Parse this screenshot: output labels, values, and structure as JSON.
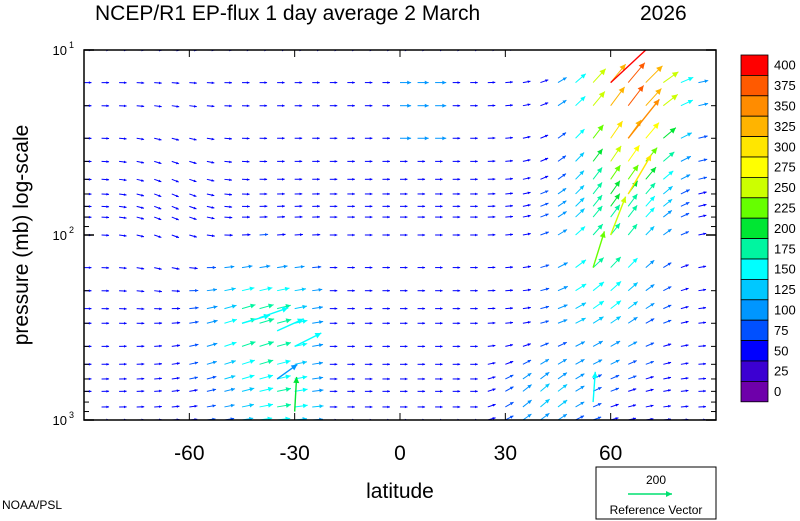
{
  "chart_data": {
    "type": "quiver",
    "title": "NCEP/R1 EP-flux  1 day average  2 March",
    "year": "2026",
    "xlabel": "latitude",
    "ylabel": "pressure (mb)  log-scale",
    "x_ticks": [
      -60,
      -30,
      0,
      30,
      60
    ],
    "x_tick_labels": [
      "-60",
      "-30",
      "0",
      "30",
      "60"
    ],
    "xlim": [
      -90,
      90
    ],
    "ylim": [
      1000,
      10
    ],
    "y_scale": "log",
    "y_tick_labels": [
      {
        "value": 10,
        "base": "10",
        "exp": "1"
      },
      {
        "value": 100,
        "base": "10",
        "exp": "2"
      },
      {
        "value": 1000,
        "base": "10",
        "exp": "3"
      }
    ],
    "colorbar": {
      "levels": [
        "400",
        "375",
        "350",
        "325",
        "300",
        "275",
        "250",
        "225",
        "200",
        "175",
        "150",
        "125",
        "100",
        "75",
        "50",
        "25",
        "0"
      ],
      "colors": [
        "#ff0000",
        "#ff5a00",
        "#ff8c00",
        "#ffb400",
        "#ffe600",
        "#ffff00",
        "#ccff00",
        "#66ff00",
        "#00e633",
        "#00f5a0",
        "#00ffff",
        "#00c8ff",
        "#0096ff",
        "#0050ff",
        "#0000ff",
        "#3c00d2",
        "#6e00aa"
      ]
    },
    "reference_vector": {
      "value": "200",
      "label": "Reference Vector",
      "color": "#00e070"
    },
    "credit": "NOAA/PSL",
    "region_vectors": [
      {
        "lat": -45,
        "p": 300,
        "du": 1.2,
        "dv": 0.35,
        "mag": 150
      },
      {
        "lat": -40,
        "p": 280,
        "du": 1.3,
        "dv": 0.45,
        "mag": 160
      },
      {
        "lat": -35,
        "p": 330,
        "du": 1.1,
        "dv": 0.5,
        "mag": 150
      },
      {
        "lat": -30,
        "p": 400,
        "du": 1.2,
        "dv": 0.6,
        "mag": 155
      },
      {
        "lat": -35,
        "p": 600,
        "du": 0.7,
        "dv": 0.5,
        "mag": 110
      },
      {
        "lat": -30,
        "p": 900,
        "du": 0.05,
        "dv": 0.9,
        "mag": 200
      },
      {
        "lat": 55,
        "p": 150,
        "du": 0.5,
        "dv": 1.6,
        "mag": 230
      },
      {
        "lat": 60,
        "p": 100,
        "du": 0.7,
        "dv": 1.8,
        "mag": 260
      },
      {
        "lat": 65,
        "p": 60,
        "du": 1.0,
        "dv": 1.7,
        "mag": 300
      },
      {
        "lat": 65,
        "p": 30,
        "du": 1.2,
        "dv": 1.5,
        "mag": 340
      },
      {
        "lat": 60,
        "p": 15,
        "du": 1.4,
        "dv": 1.3,
        "mag": 400
      },
      {
        "lat": 55,
        "p": 800,
        "du": 0.1,
        "dv": 1.4,
        "mag": 160
      }
    ]
  }
}
